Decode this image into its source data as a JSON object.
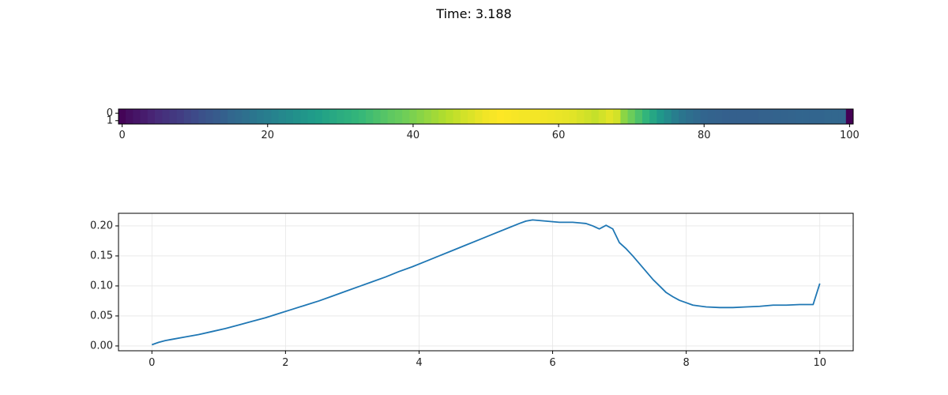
{
  "figure": {
    "title": "Time: 3.188"
  },
  "chart_data": [
    {
      "type": "heatmap",
      "title": "",
      "colormap": "viridis",
      "vmin": 0.0,
      "vmax": 0.21,
      "rows": 2,
      "cols": 101,
      "row_tick_labels": [
        "0",
        "1"
      ],
      "x_ticks": [
        0,
        20,
        40,
        60,
        80,
        100
      ],
      "x_tick_labels": [
        "0",
        "20",
        "40",
        "60",
        "80",
        "100"
      ],
      "xlim": [
        -0.5,
        100.5
      ],
      "values": [
        0.002,
        0.008,
        0.012,
        0.016,
        0.021,
        0.026,
        0.03,
        0.034,
        0.038,
        0.043,
        0.047,
        0.052,
        0.056,
        0.06,
        0.064,
        0.069,
        0.073,
        0.077,
        0.082,
        0.086,
        0.09,
        0.094,
        0.098,
        0.102,
        0.106,
        0.11,
        0.114,
        0.118,
        0.122,
        0.126,
        0.13,
        0.133,
        0.137,
        0.141,
        0.145,
        0.149,
        0.153,
        0.157,
        0.16,
        0.164,
        0.168,
        0.172,
        0.176,
        0.18,
        0.184,
        0.188,
        0.192,
        0.196,
        0.199,
        0.203,
        0.206,
        0.208,
        0.21,
        0.209,
        0.208,
        0.207,
        0.207,
        0.207,
        0.206,
        0.205,
        0.204,
        0.203,
        0.201,
        0.198,
        0.195,
        0.192,
        0.196,
        0.201,
        0.196,
        0.173,
        0.162,
        0.15,
        0.137,
        0.124,
        0.112,
        0.101,
        0.09,
        0.082,
        0.076,
        0.072,
        0.068,
        0.066,
        0.065,
        0.064,
        0.064,
        0.064,
        0.064,
        0.064,
        0.065,
        0.065,
        0.066,
        0.066,
        0.067,
        0.068,
        0.068,
        0.068,
        0.068,
        0.069,
        0.069,
        0.069,
        0.0
      ]
    },
    {
      "type": "line",
      "title": "",
      "xlabel": "",
      "ylabel": "",
      "xlim": [
        -0.5,
        10.5
      ],
      "ylim": [
        -0.008,
        0.221
      ],
      "x_ticks": [
        0,
        2,
        4,
        6,
        8,
        10
      ],
      "x_tick_labels": [
        "0",
        "2",
        "4",
        "6",
        "8",
        "10"
      ],
      "y_ticks": [
        0.0,
        0.05,
        0.1,
        0.15,
        0.2
      ],
      "y_tick_labels": [
        "0.00",
        "0.05",
        "0.10",
        "0.15",
        "0.20"
      ],
      "grid": true,
      "series": [
        {
          "color": "#1f77b4",
          "x": [
            0.0,
            0.1,
            0.2,
            0.3,
            0.5,
            0.7,
            0.9,
            1.1,
            1.3,
            1.5,
            1.7,
            1.9,
            2.1,
            2.3,
            2.5,
            2.7,
            2.9,
            3.1,
            3.3,
            3.5,
            3.7,
            3.9,
            4.1,
            4.3,
            4.5,
            4.7,
            4.9,
            5.1,
            5.3,
            5.5,
            5.6,
            5.7,
            5.8,
            5.9,
            6.0,
            6.1,
            6.2,
            6.3,
            6.4,
            6.5,
            6.6,
            6.7,
            6.8,
            6.9,
            7.0,
            7.1,
            7.2,
            7.3,
            7.4,
            7.5,
            7.6,
            7.7,
            7.8,
            7.9,
            8.0,
            8.1,
            8.3,
            8.5,
            8.7,
            8.9,
            9.1,
            9.3,
            9.5,
            9.7,
            9.9,
            10.0
          ],
          "y": [
            0.002,
            0.006,
            0.009,
            0.011,
            0.015,
            0.019,
            0.024,
            0.029,
            0.035,
            0.041,
            0.047,
            0.054,
            0.061,
            0.068,
            0.075,
            0.083,
            0.091,
            0.099,
            0.107,
            0.115,
            0.124,
            0.132,
            0.141,
            0.15,
            0.159,
            0.168,
            0.177,
            0.186,
            0.195,
            0.204,
            0.208,
            0.21,
            0.209,
            0.208,
            0.207,
            0.206,
            0.206,
            0.206,
            0.205,
            0.204,
            0.2,
            0.195,
            0.201,
            0.195,
            0.172,
            0.162,
            0.15,
            0.137,
            0.124,
            0.111,
            0.1,
            0.089,
            0.082,
            0.076,
            0.072,
            0.068,
            0.065,
            0.064,
            0.064,
            0.065,
            0.066,
            0.068,
            0.068,
            0.069,
            0.069,
            0.104
          ]
        }
      ]
    }
  ]
}
